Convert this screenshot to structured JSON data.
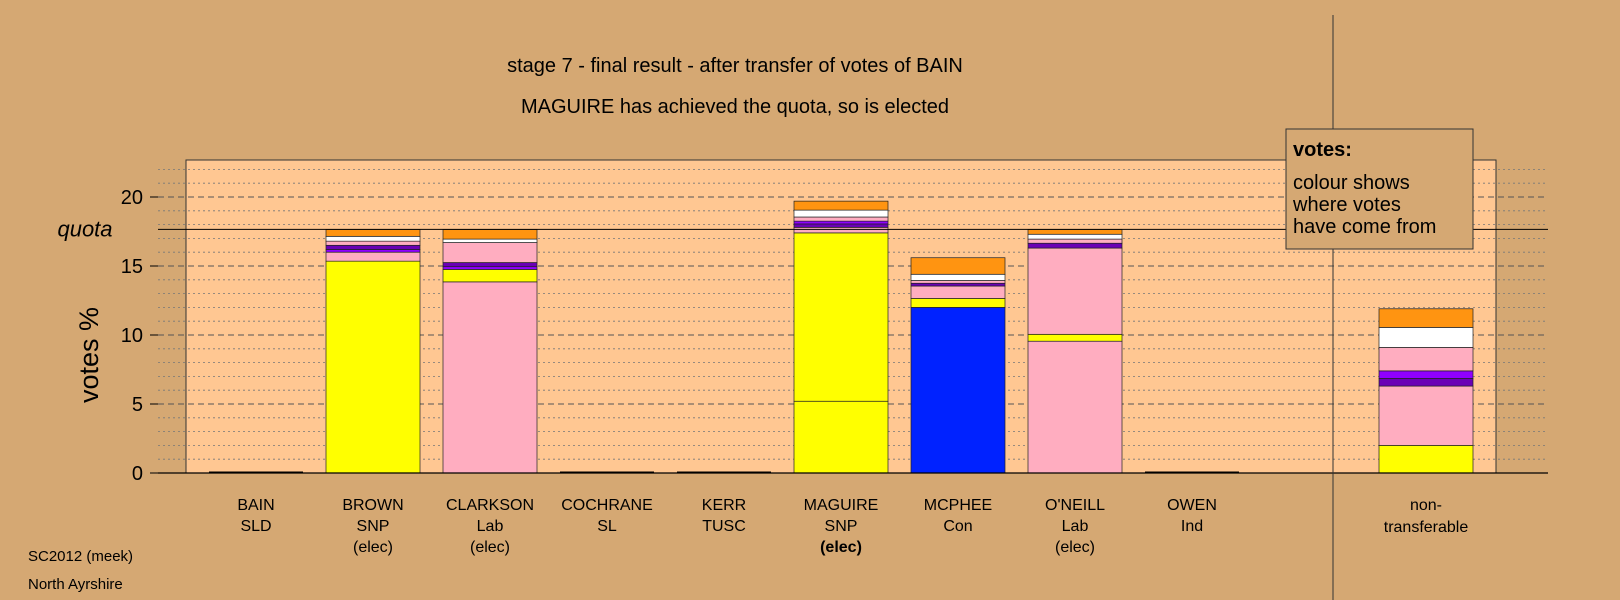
{
  "chart_data": {
    "type": "bar",
    "stacked": true,
    "title": "stage 7 - final result - after transfer of votes of BAIN",
    "subtitle": "MAGUIRE has achieved the quota, so is elected",
    "ylabel": "votes %",
    "ylim": [
      0,
      22.5
    ],
    "yticks": [
      0,
      5,
      10,
      15,
      20
    ],
    "quota": 17.65,
    "quota_label": "quota",
    "grid": "minor dotted every 1, major dashed every 5",
    "legend": {
      "position": "top-right",
      "title": "votes:",
      "lines": [
        "colour shows",
        "where votes",
        "have come from"
      ]
    },
    "footer": [
      "SC2012 (meek)",
      "North Ayrshire"
    ],
    "colors": {
      "snp": "#ffff00",
      "lab": "#ffadc0",
      "sld": "#ffffff",
      "sl": "#9000ff",
      "tusc": "#6a00b5",
      "con": "#0022ff",
      "ind": "#ff9411",
      "plot_bg": "#ffc792",
      "page_bg": "#d5a873"
    },
    "categories": [
      {
        "name": "BAIN",
        "party": "SLD",
        "status": "",
        "bold": false
      },
      {
        "name": "BROWN",
        "party": "SNP",
        "status": "(elec)",
        "bold": false
      },
      {
        "name": "CLARKSON",
        "party": "Lab",
        "status": "(elec)",
        "bold": false
      },
      {
        "name": "COCHRANE",
        "party": "SL",
        "status": "",
        "bold": false
      },
      {
        "name": "KERR",
        "party": "TUSC",
        "status": "",
        "bold": false
      },
      {
        "name": "MAGUIRE",
        "party": "SNP",
        "status": "(elec)",
        "bold": true
      },
      {
        "name": "MCPHEE",
        "party": "Con",
        "status": "",
        "bold": false
      },
      {
        "name": "O'NEILL",
        "party": "Lab",
        "status": "(elec)",
        "bold": false
      },
      {
        "name": "OWEN",
        "party": "Ind",
        "status": "",
        "bold": false
      }
    ],
    "nontransferable_label": [
      "non-",
      "transferable"
    ],
    "bars": [
      {
        "candidate": "BAIN",
        "segments": []
      },
      {
        "candidate": "BROWN",
        "segments": [
          {
            "source": "snp",
            "value": 15.35
          },
          {
            "source": "lab",
            "value": 0.65
          },
          {
            "source": "sl",
            "value": 0.2
          },
          {
            "source": "tusc",
            "value": 0.3
          },
          {
            "source": "lab",
            "value": 0.3
          },
          {
            "source": "sld",
            "value": 0.35
          },
          {
            "source": "ind",
            "value": 0.5
          }
        ]
      },
      {
        "candidate": "CLARKSON",
        "segments": [
          {
            "source": "lab",
            "value": 13.85
          },
          {
            "source": "snp",
            "value": 0.9
          },
          {
            "source": "sl",
            "value": 0.2
          },
          {
            "source": "tusc",
            "value": 0.3
          },
          {
            "source": "lab",
            "value": 1.45
          },
          {
            "source": "sld",
            "value": 0.25
          },
          {
            "source": "ind",
            "value": 0.7
          }
        ]
      },
      {
        "candidate": "COCHRANE",
        "segments": []
      },
      {
        "candidate": "KERR",
        "segments": []
      },
      {
        "candidate": "MAGUIRE",
        "segments": [
          {
            "source": "snp",
            "value": 5.2
          },
          {
            "source": "snp",
            "value": 12.2
          },
          {
            "source": "lab",
            "value": 0.4
          },
          {
            "source": "tusc",
            "value": 0.25
          },
          {
            "source": "sl",
            "value": 0.2
          },
          {
            "source": "lab",
            "value": 0.3
          },
          {
            "source": "sld",
            "value": 0.5
          },
          {
            "source": "ind",
            "value": 0.65
          }
        ]
      },
      {
        "candidate": "MCPHEE",
        "segments": [
          {
            "source": "con",
            "value": 12.0
          },
          {
            "source": "snp",
            "value": 0.65
          },
          {
            "source": "lab",
            "value": 0.9
          },
          {
            "source": "tusc",
            "value": 0.2
          },
          {
            "source": "lab",
            "value": 0.2
          },
          {
            "source": "sld",
            "value": 0.45
          },
          {
            "source": "ind",
            "value": 1.2
          }
        ]
      },
      {
        "candidate": "O'NEILL",
        "segments": [
          {
            "source": "lab",
            "value": 9.55
          },
          {
            "source": "snp",
            "value": 0.5
          },
          {
            "source": "lab",
            "value": 6.25
          },
          {
            "source": "tusc",
            "value": 0.35
          },
          {
            "source": "lab",
            "value": 0.3
          },
          {
            "source": "sld",
            "value": 0.35
          },
          {
            "source": "ind",
            "value": 0.35
          }
        ]
      },
      {
        "candidate": "OWEN",
        "segments": []
      },
      {
        "candidate": "non-transferable",
        "segments": [
          {
            "source": "snp",
            "value": 2.0
          },
          {
            "source": "lab",
            "value": 4.3
          },
          {
            "source": "tusc",
            "value": 0.55
          },
          {
            "source": "sl",
            "value": 0.55
          },
          {
            "source": "lab",
            "value": 1.7
          },
          {
            "source": "sld",
            "value": 1.45
          },
          {
            "source": "ind",
            "value": 1.35
          }
        ]
      }
    ]
  }
}
